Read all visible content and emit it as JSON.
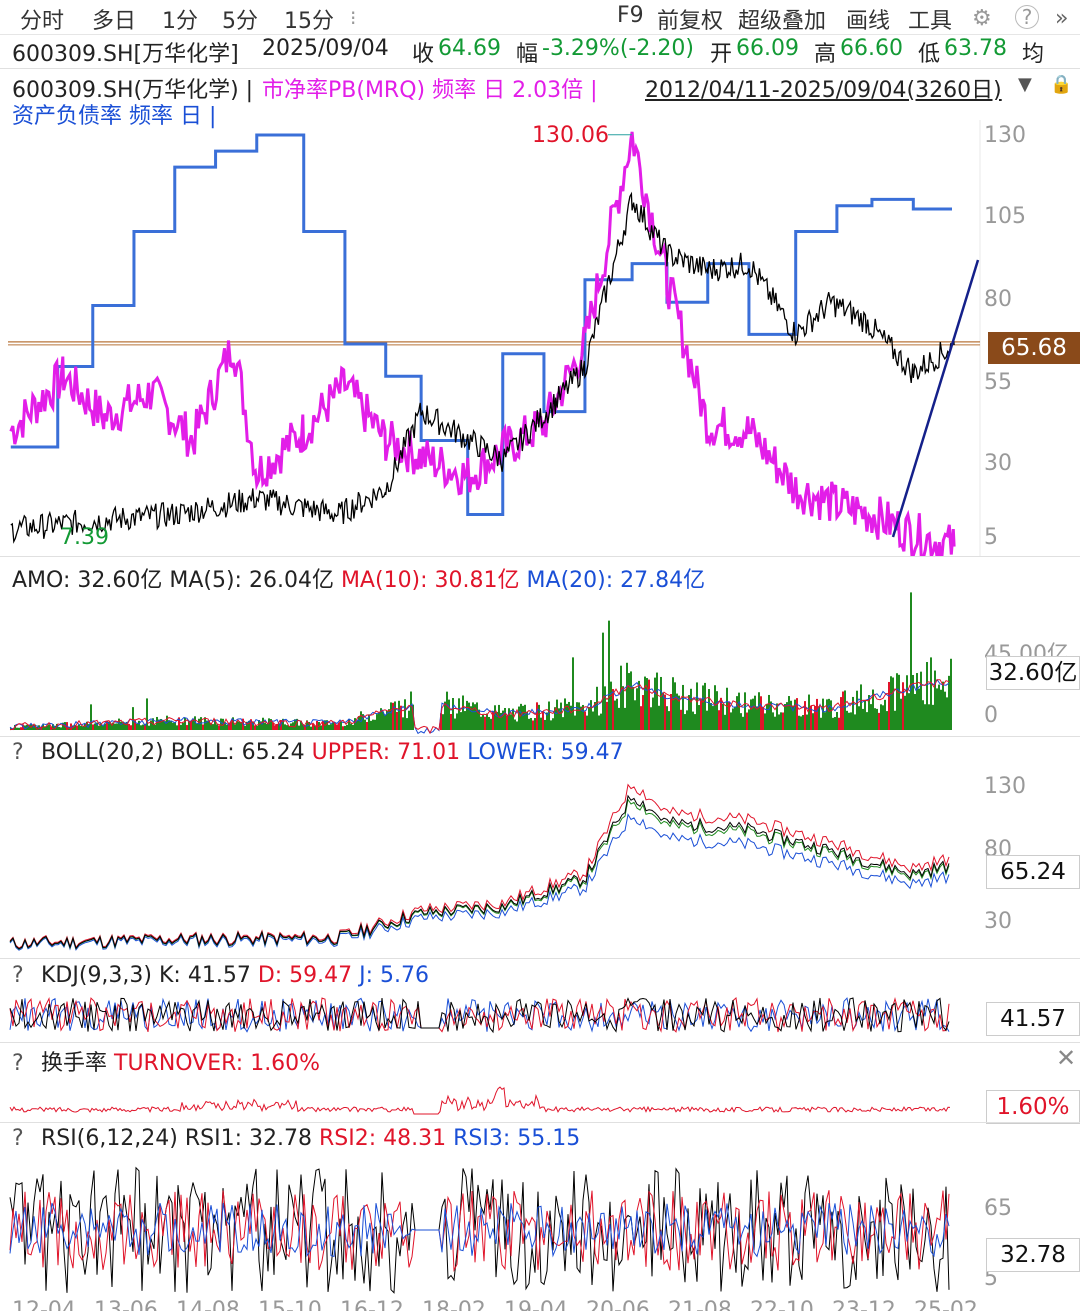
{
  "toolbar": {
    "tabs": [
      "分时",
      "多日",
      "1分",
      "5分",
      "15分"
    ],
    "right_items": [
      "F9",
      "前复权",
      "超级叠加",
      "画线",
      "工具"
    ],
    "icons": [
      "gear-icon",
      "help-icon",
      "more-icon"
    ]
  },
  "quote": {
    "symbol": "600309.SH[万华化学]",
    "date": "2025/09/04",
    "close_label": "收",
    "close": "64.69",
    "change_label": "幅",
    "change": "-3.29%(-2.20)",
    "open_label": "开",
    "open": "66.09",
    "high_label": "高",
    "high": "66.60",
    "low_label": "低",
    "low": "63.78",
    "avg_label": "均"
  },
  "main_panel": {
    "title_symbol": "600309.SH(万华化学) |",
    "title_indicator": "市净率PB(MRQ) 频率 日 2.03倍 |",
    "date_range": "2012/04/11-2025/09/04(3260日)",
    "title_line2": "资产负债率 频率 日 |",
    "y_ticks": [
      "130",
      "105",
      "80",
      "55",
      "30",
      "5"
    ],
    "peak_label": "130.06",
    "min_label": "7.39",
    "current_tag": "65.68"
  },
  "amo_panel": {
    "title_amo": "AMO: 32.60亿",
    "title_ma5": "MA(5): 26.04亿",
    "title_ma10": "MA(10): 30.81亿",
    "title_ma20": "MA(20): 27.84亿",
    "y_ticks": [
      "45.00亿",
      "0"
    ],
    "current_tag": "32.60亿"
  },
  "boll_panel": {
    "q": "?",
    "title_name": "BOLL(20,2)",
    "title_boll": "BOLL: 65.24",
    "title_upper": "UPPER: 71.01",
    "title_lower": "LOWER: 59.47",
    "y_ticks": [
      "130",
      "80",
      "30"
    ],
    "current_tag": "65.24"
  },
  "kdj_panel": {
    "q": "?",
    "title_name": "KDJ(9,3,3)",
    "title_k": "K: 41.57",
    "title_d": "D: 59.47",
    "title_j": "J: 5.76",
    "current_tag": "41.57"
  },
  "turnover_panel": {
    "q": "?",
    "title_name": "换手率",
    "title_value": "TURNOVER: 1.60%",
    "current_tag": "1.60%"
  },
  "rsi_panel": {
    "q": "?",
    "title_name": "RSI(6,12,24)",
    "title_rsi1": "RSI1: 32.78",
    "title_rsi2": "RSI2: 48.31",
    "title_rsi3": "RSI3: 55.15",
    "y_ticks": [
      "65",
      "5"
    ],
    "current_tag": "32.78"
  },
  "x_axis_labels": [
    "12-04",
    "13-06",
    "14-08",
    "15-10",
    "16-12",
    "18-02",
    "19-04",
    "20-06",
    "21-08",
    "22-10",
    "23-12",
    "25-02"
  ],
  "colors": {
    "price": "#000000",
    "pb": "#e21ee8",
    "debt_ratio": "#3a6fd8",
    "trendline": "#14208a",
    "hline": "#b8753a",
    "amo_bar": "#1f8a1f",
    "ma10": "#e0142a",
    "ma20": "#1a4fd6"
  },
  "chart_data": [
    {
      "type": "line",
      "title": "600309.SH(万华化学) 市净率PB(MRQ) / 资产负债率",
      "x_range": [
        "2012/04/11",
        "2025/09/04"
      ],
      "ylim": [
        5,
        130
      ],
      "series": [
        {
          "name": "600309.SH(万华化学)",
          "x": [
            "2012-04",
            "2013-06",
            "2014-08",
            "2015-10",
            "2016-12",
            "2017-08",
            "2018-02",
            "2019-04",
            "2020-01",
            "2020-06",
            "2021-02",
            "2021-08",
            "2022-03",
            "2022-10",
            "2023-06",
            "2023-12",
            "2024-06",
            "2025-02",
            "2025-09"
          ],
          "values": [
            7.39,
            10,
            12,
            17,
            12,
            20,
            44,
            29,
            47,
            58,
            110,
            93,
            88,
            90,
            68,
            78,
            72,
            56,
            64.69
          ]
        },
        {
          "name": "市净率PB(MRQ)",
          "x": [
            "2012-04",
            "2013-01",
            "2013-08",
            "2014-04",
            "2014-11",
            "2015-06",
            "2015-10",
            "2016-06",
            "2017-01",
            "2017-08",
            "2018-02",
            "2018-10",
            "2019-04",
            "2019-11",
            "2020-06",
            "2021-02",
            "2021-08",
            "2022-03",
            "2022-10",
            "2023-06",
            "2024-01",
            "2024-07",
            "2025-02",
            "2025-09"
          ],
          "values": [
            38,
            55,
            42,
            50,
            35,
            65,
            25,
            38,
            52,
            35,
            30,
            24,
            32,
            40,
            65,
            130,
            85,
            40,
            38,
            20,
            15,
            12,
            6,
            2.03
          ]
        },
        {
          "name": "资产负债率",
          "x": [
            "2012-04",
            "2012-12",
            "2013-06",
            "2014-01",
            "2014-08",
            "2015-03",
            "2015-10",
            "2016-06",
            "2017-01",
            "2017-08",
            "2018-02",
            "2018-10",
            "2019-04",
            "2019-11",
            "2020-06",
            "2021-02",
            "2021-08",
            "2022-03",
            "2022-10",
            "2023-06",
            "2024-01",
            "2024-07",
            "2025-02"
          ],
          "values": [
            33,
            58,
            77,
            100,
            120,
            125,
            130,
            100,
            65,
            55,
            35,
            12,
            62,
            44,
            85,
            90,
            78,
            90,
            68,
            100,
            108,
            110,
            107
          ]
        }
      ]
    },
    {
      "type": "bar",
      "title": "AMO",
      "x_range": [
        "2012/04/11",
        "2025/09/04"
      ],
      "ylim": [
        0,
        45
      ],
      "series": [
        {
          "name": "AMO",
          "x": [
            "2012-04",
            "2014-08",
            "2016-12",
            "2018-02",
            "2019-04",
            "2020-06",
            "2021-02",
            "2021-08",
            "2022-10",
            "2023-12",
            "2025-02",
            "2025-09"
          ],
          "values": [
            2,
            6,
            4,
            18,
            10,
            14,
            30,
            22,
            16,
            14,
            28,
            32.6
          ]
        }
      ]
    },
    {
      "type": "line",
      "title": "BOLL(20,2)",
      "ylim": [
        5,
        130
      ],
      "series": [
        {
          "name": "BOLL",
          "x": [
            "2012-04",
            "2014-08",
            "2016-12",
            "2018-02",
            "2019-04",
            "2020-06",
            "2021-02",
            "2021-08",
            "2022-10",
            "2023-12",
            "2025-02",
            "2025-09"
          ],
          "values": [
            8,
            11,
            12,
            30,
            35,
            55,
            115,
            95,
            90,
            75,
            58,
            65.24
          ]
        }
      ]
    },
    {
      "type": "line",
      "title": "KDJ(9,3,3)",
      "series": [
        {
          "name": "K",
          "values": [
            41.57
          ]
        },
        {
          "name": "D",
          "values": [
            59.47
          ]
        },
        {
          "name": "J",
          "values": [
            5.76
          ]
        }
      ]
    },
    {
      "type": "line",
      "title": "换手率",
      "series": [
        {
          "name": "TURNOVER",
          "values": [
            1.6
          ]
        }
      ]
    },
    {
      "type": "line",
      "title": "RSI(6,12,24)",
      "series": [
        {
          "name": "RSI1",
          "values": [
            32.78
          ]
        },
        {
          "name": "RSI2",
          "values": [
            48.31
          ]
        },
        {
          "name": "RSI3",
          "values": [
            55.15
          ]
        }
      ]
    }
  ]
}
